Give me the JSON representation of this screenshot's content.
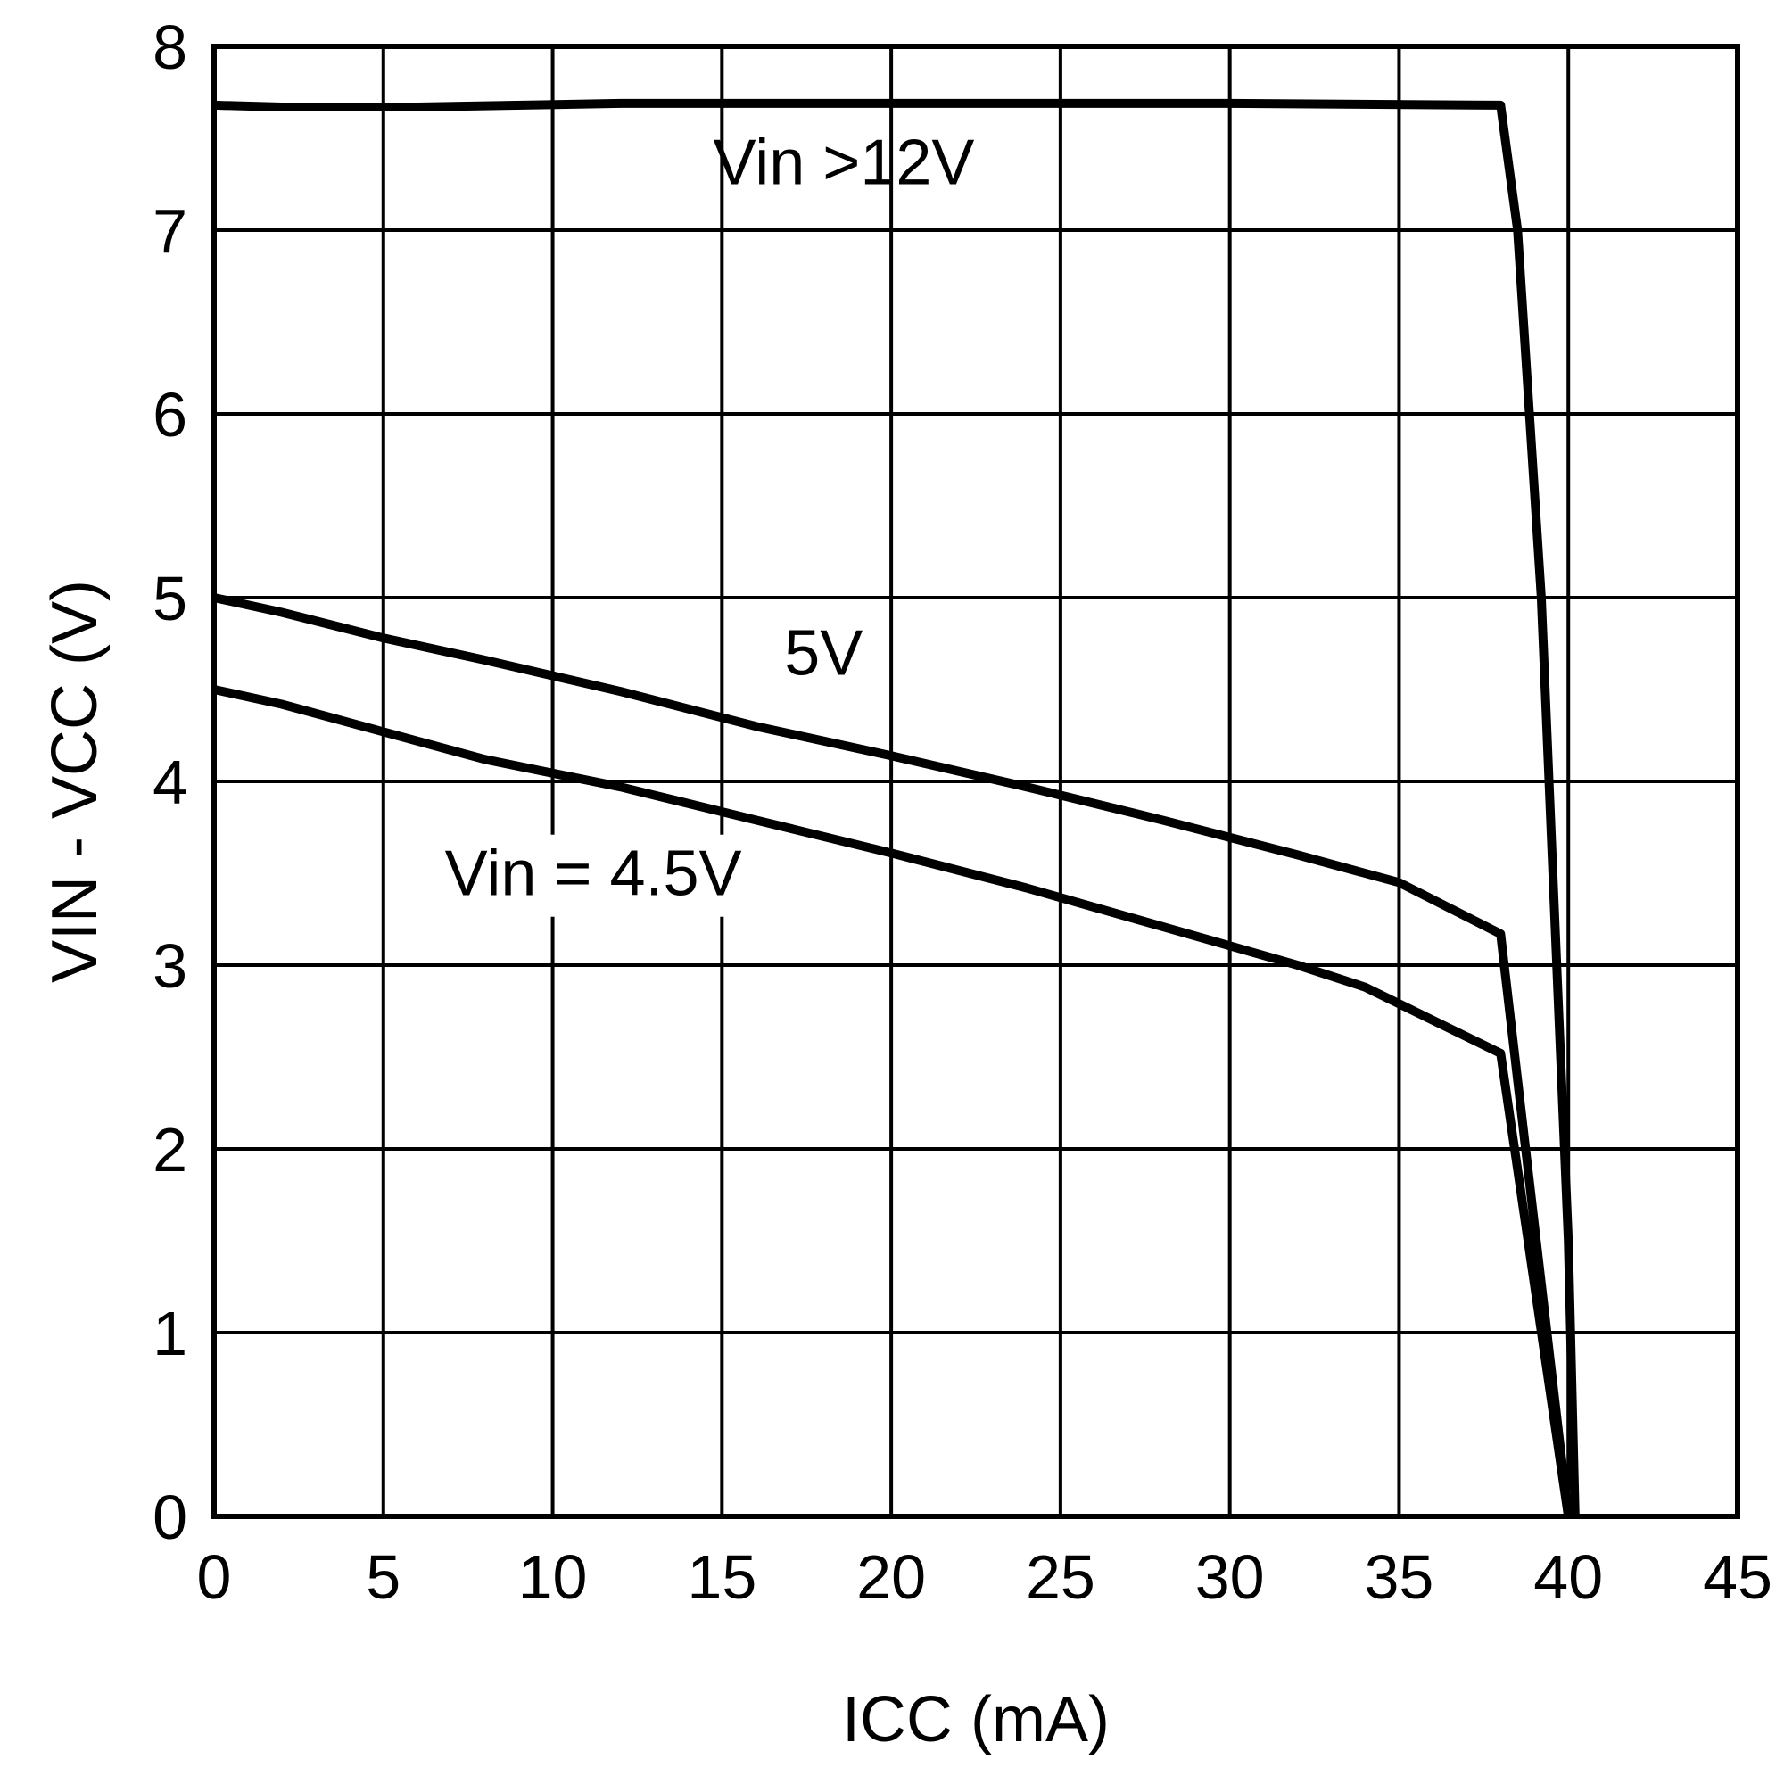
{
  "chart_data": {
    "type": "line",
    "title": "",
    "xlabel": "ICC (mA)",
    "ylabel": "VIN - VCC (V)",
    "xlim": [
      0,
      45
    ],
    "ylim": [
      0,
      8
    ],
    "xticks": [
      0,
      5,
      10,
      15,
      20,
      25,
      30,
      35,
      40,
      45
    ],
    "yticks": [
      0,
      1,
      2,
      3,
      4,
      5,
      6,
      7,
      8
    ],
    "grid": true,
    "legend": "none (inline labels)",
    "series": [
      {
        "name": "Vin >12V",
        "label": "Vin >12V",
        "x": [
          0,
          2,
          6,
          12,
          20,
          30,
          38,
          38.5,
          39.2,
          40,
          40.2
        ],
        "y": [
          7.68,
          7.67,
          7.67,
          7.69,
          7.69,
          7.69,
          7.68,
          7.0,
          5.0,
          1.5,
          0
        ]
      },
      {
        "name": "5V",
        "label": "5V",
        "x": [
          0,
          2,
          5,
          8,
          12,
          16,
          20,
          24,
          28,
          32,
          35,
          38,
          40
        ],
        "y": [
          5.0,
          4.92,
          4.78,
          4.66,
          4.49,
          4.3,
          4.14,
          3.97,
          3.79,
          3.6,
          3.45,
          3.17,
          0
        ]
      },
      {
        "name": "Vin = 4.5V",
        "label": "Vin = 4.5V",
        "x": [
          0,
          2,
          5,
          8,
          12,
          16,
          20,
          24,
          28,
          32,
          34,
          35,
          38,
          40
        ],
        "y": [
          4.5,
          4.42,
          4.27,
          4.12,
          3.97,
          3.79,
          3.61,
          3.42,
          3.21,
          3.0,
          2.88,
          2.79,
          2.52,
          0
        ]
      }
    ]
  }
}
